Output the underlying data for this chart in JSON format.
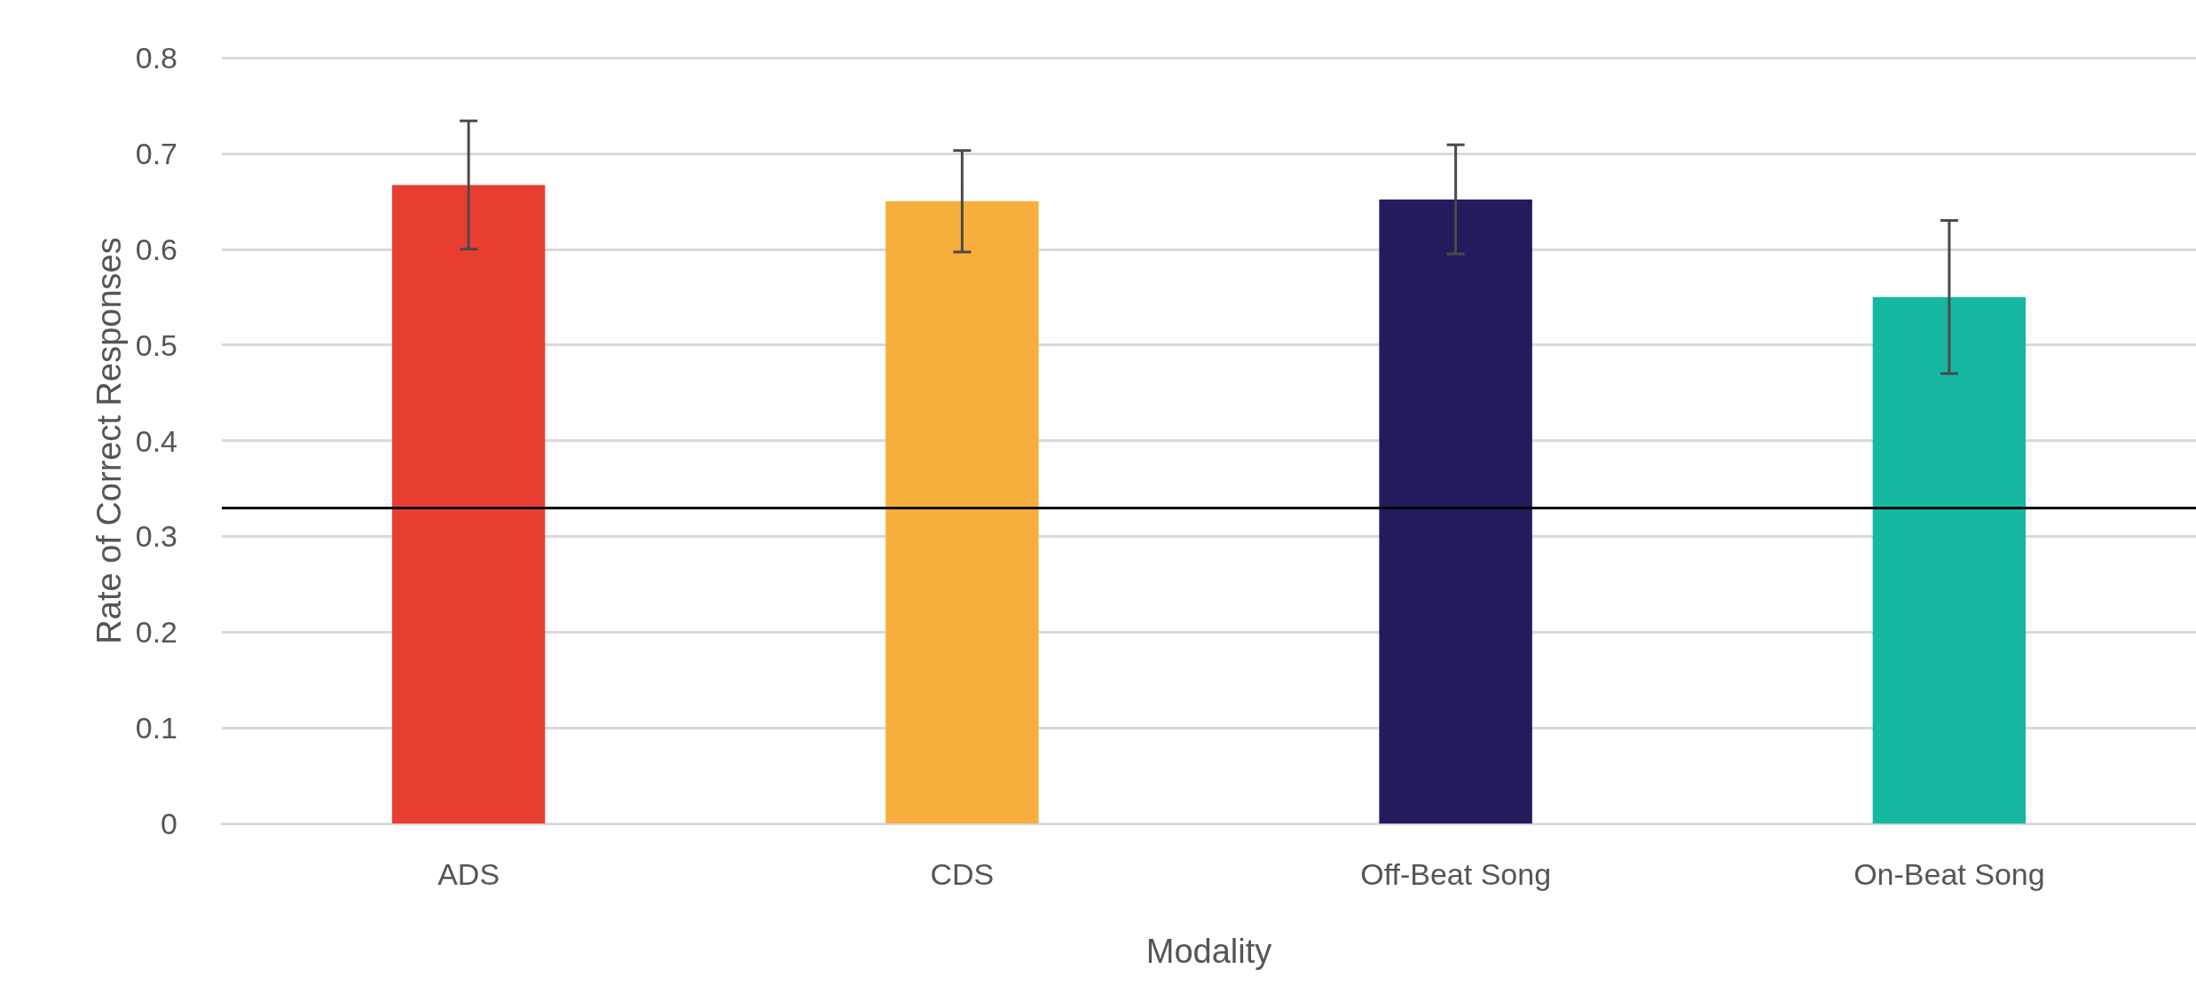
{
  "chart_data": {
    "type": "bar",
    "xlabel": "Modality",
    "ylabel": "Rate of Correct Responses",
    "categories": [
      "ADS",
      "CDS",
      "Off-Beat Song",
      "On-Beat Song"
    ],
    "values": [
      0.667,
      0.65,
      0.652,
      0.55
    ],
    "errors": [
      0.067,
      0.053,
      0.057,
      0.08
    ],
    "colors": [
      "#e83e32",
      "#f8ae3c",
      "#221c5c",
      "#16b8a2"
    ],
    "ylim": [
      0,
      0.8
    ],
    "yticks": [
      0,
      0.1,
      0.2,
      0.3,
      0.4,
      0.5,
      0.6,
      0.7,
      0.8
    ],
    "grid": "y",
    "ref_lines": [
      {
        "axis": "y",
        "value": 0.33,
        "color": "#000000",
        "line_style": "solid"
      }
    ]
  }
}
